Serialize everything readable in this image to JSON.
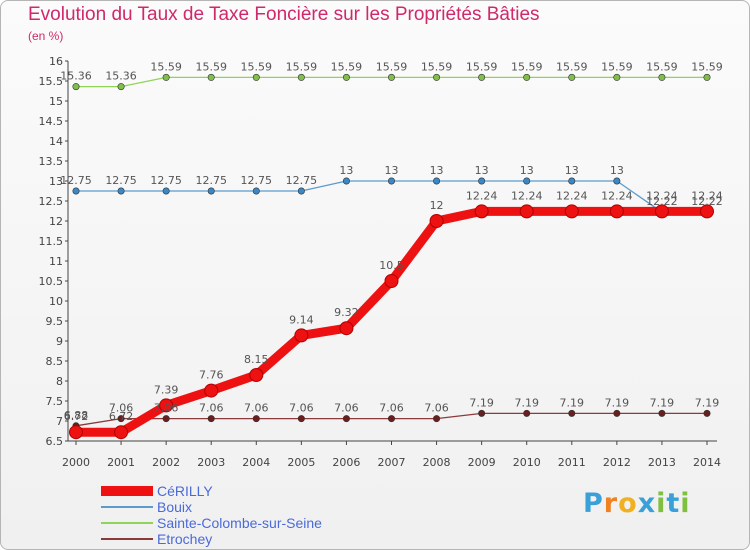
{
  "title": "Evolution du Taux de Taxe Foncière sur les Propriétés Bâties",
  "unit": "(en %)",
  "logo": {
    "letters": [
      "P",
      "r",
      "o",
      "x",
      "i",
      "t",
      "i"
    ],
    "colors": [
      "#3aa0d8",
      "#f08020",
      "#f0b020",
      "#3aa0d8",
      "#80c040",
      "#3aa0d8",
      "#80c040"
    ]
  },
  "chart_data": {
    "type": "line",
    "title": "Evolution du Taux de Taxe Foncière sur les Propriétés Bâties",
    "ylabel": "(en %)",
    "xlabel": "",
    "x": [
      "2000",
      "2001",
      "2002",
      "2003",
      "2004",
      "2005",
      "2006",
      "2007",
      "2008",
      "2009",
      "2010",
      "2011",
      "2012",
      "2013",
      "2014"
    ],
    "ylim": [
      6.5,
      16
    ],
    "yticks": [
      "6.5",
      "7",
      "7.5",
      "8",
      "8.5",
      "9",
      "9.5",
      "10",
      "10.5",
      "11",
      "11.5",
      "12",
      "12.5",
      "13",
      "13.5",
      "14",
      "14.5",
      "15",
      "15.5",
      "16"
    ],
    "grid": false,
    "series": [
      {
        "name": "Sainte-Colombe-sur-Seine",
        "color": "#8fd458",
        "marker_color": "#80c048",
        "bold": false,
        "values": [
          15.36,
          15.36,
          15.59,
          15.59,
          15.59,
          15.59,
          15.59,
          15.59,
          15.59,
          15.59,
          15.59,
          15.59,
          15.59,
          15.59,
          15.59
        ],
        "labels": [
          "15.36",
          "15.36",
          "15.59",
          "15.59",
          "15.59",
          "15.59",
          "15.59",
          "15.59",
          "15.59",
          "15.59",
          "15.59",
          "15.59",
          "15.59",
          "15.59",
          "15.59"
        ]
      },
      {
        "name": "Bouix",
        "color": "#5a9ccc",
        "marker_color": "#3a88c8",
        "bold": false,
        "values": [
          12.75,
          12.75,
          12.75,
          12.75,
          12.75,
          12.75,
          13,
          13,
          13,
          13,
          13,
          13,
          13,
          12.22,
          12.22
        ],
        "labels": [
          "12.75",
          "12.75",
          "12.75",
          "12.75",
          "12.75",
          "12.75",
          "13",
          "13",
          "13",
          "13",
          "13",
          "13",
          "13",
          "12.22",
          "12.22"
        ]
      },
      {
        "name": "Etrochey",
        "color": "#8a3a3a",
        "marker_color": "#6b1e1e",
        "bold": false,
        "values": [
          6.88,
          7.06,
          7.06,
          7.06,
          7.06,
          7.06,
          7.06,
          7.06,
          7.06,
          7.19,
          7.19,
          7.19,
          7.19,
          7.19,
          7.19
        ],
        "labels": [
          "6.88",
          "7.06",
          "7.06",
          "7.06",
          "7.06",
          "7.06",
          "7.06",
          "7.06",
          "7.06",
          "7.19",
          "7.19",
          "7.19",
          "7.19",
          "7.19",
          "7.19"
        ]
      },
      {
        "name": "CéRILLY",
        "color": "#ee1111",
        "marker_color": "#cc0000",
        "bold": true,
        "values": [
          6.72,
          6.72,
          7.39,
          7.76,
          8.15,
          9.14,
          9.32,
          10.5,
          12,
          12.24,
          12.24,
          12.24,
          12.24,
          12.24,
          12.24
        ],
        "labels": [
          "6.72",
          "6.72",
          "7.39",
          "7.76",
          "8.15",
          "9.14",
          "9.32",
          "10.5",
          "12",
          "12.24",
          "12.24",
          "12.24",
          "12.24",
          "12.24",
          "12.24"
        ]
      }
    ],
    "legend": [
      {
        "name": "CéRILLY",
        "color": "#ee1111",
        "bold": true
      },
      {
        "name": "Bouix",
        "color": "#5a9ccc",
        "bold": false
      },
      {
        "name": "Sainte-Colombe-sur-Seine",
        "color": "#8fd458",
        "bold": false
      },
      {
        "name": "Etrochey",
        "color": "#8a3a3a",
        "bold": false
      }
    ],
    "legend_position": "bottom-left"
  }
}
